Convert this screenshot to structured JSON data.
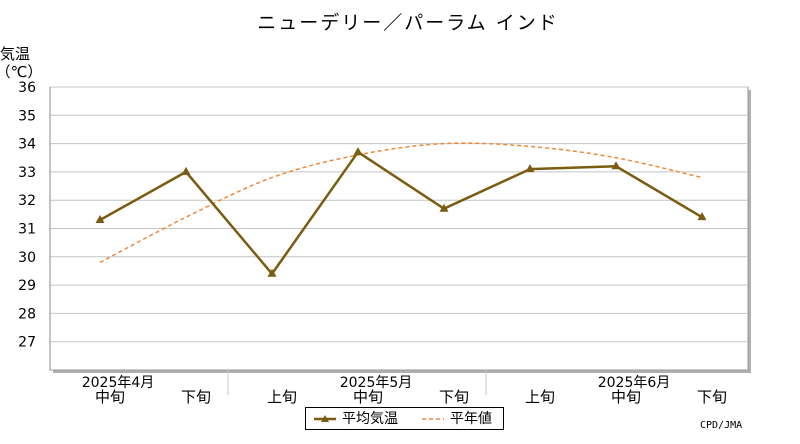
{
  "chart_data": {
    "type": "line",
    "title": "ニューデリー／パーラム インド",
    "ylabel_line1": "気温",
    "ylabel_line2": "（℃）",
    "ylim": [
      26,
      36
    ],
    "yticks": [
      "27",
      "28",
      "29",
      "30",
      "31",
      "32",
      "33",
      "34",
      "35",
      "36"
    ],
    "categories": [
      "2025年4月 中旬",
      "2025年4月 下旬",
      "2025年5月 上旬",
      "2025年5月 中旬",
      "2025年5月 下旬",
      "2025年6月 上旬",
      "2025年6月 中旬",
      "2025年6月 下旬"
    ],
    "xtick_labels": [
      "中旬",
      "下旬",
      "上旬",
      "中旬",
      "下旬",
      "上旬",
      "中旬",
      "下旬"
    ],
    "month_labels": [
      "2025年4月",
      "2025年5月",
      "2025年6月"
    ],
    "grid": true,
    "legend_position": "bottom",
    "series": [
      {
        "name": "平均気温",
        "style": "solid-triangle-markers",
        "color": "#7a5c12",
        "values": [
          31.3,
          33.0,
          29.4,
          33.7,
          31.7,
          33.1,
          33.2,
          31.4
        ]
      },
      {
        "name": "平年値",
        "style": "dashed",
        "color": "#f0883a",
        "values": [
          29.8,
          31.4,
          32.8,
          33.6,
          34.0,
          33.9,
          33.5,
          32.8
        ]
      }
    ]
  },
  "credit": "CPD/JMA"
}
